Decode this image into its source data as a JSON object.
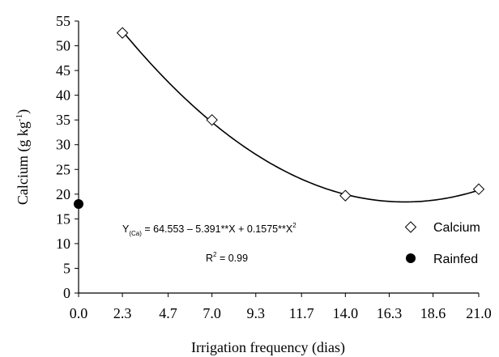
{
  "chart_data": {
    "type": "scatter",
    "title": "",
    "xlabel": "Irrigation frequency (dias)",
    "ylabel_main": "Calcium (g kg",
    "ylabel_sup": "-1",
    "ylabel_close": ")",
    "xlim": [
      0,
      21
    ],
    "ylim": [
      0,
      55
    ],
    "x_ticks": [
      0.0,
      2.3,
      4.7,
      7.0,
      9.3,
      11.7,
      14.0,
      16.3,
      18.6,
      21.0
    ],
    "x_tick_labels": [
      "0.0",
      "2.3",
      "4.7",
      "7.0",
      "9.3",
      "11.7",
      "14.0",
      "16.3",
      "18.6",
      "21.0"
    ],
    "y_ticks": [
      0,
      5,
      10,
      15,
      20,
      25,
      30,
      35,
      40,
      45,
      50,
      55
    ],
    "y_tick_labels": [
      "0",
      "5",
      "10",
      "15",
      "20",
      "25",
      "30",
      "35",
      "40",
      "45",
      "50",
      "55"
    ],
    "grid": false,
    "legend_placement": "right",
    "series": [
      {
        "name": "Calcium",
        "marker": "open-diamond",
        "color": "#000000",
        "x": [
          2.3,
          7.0,
          14.0,
          21.0
        ],
        "y": [
          52.6,
          35.0,
          19.7,
          21.0
        ]
      },
      {
        "name": "Rainfed",
        "marker": "filled-circle",
        "color": "#000000",
        "x": [
          0.0
        ],
        "y": [
          18.0
        ]
      }
    ],
    "fit": {
      "intercept": 64.553,
      "linear": -5.391,
      "quadratic": 0.1575,
      "x_range": [
        2.3,
        21.0
      ]
    },
    "equation": {
      "y": "Y",
      "sub": "(Ca)",
      "body": " = 64.553 – 5.391**X + 0.1575**X",
      "sup": "2"
    },
    "r2": {
      "label": "R",
      "sup": "2",
      "value": " = 0.99"
    }
  }
}
